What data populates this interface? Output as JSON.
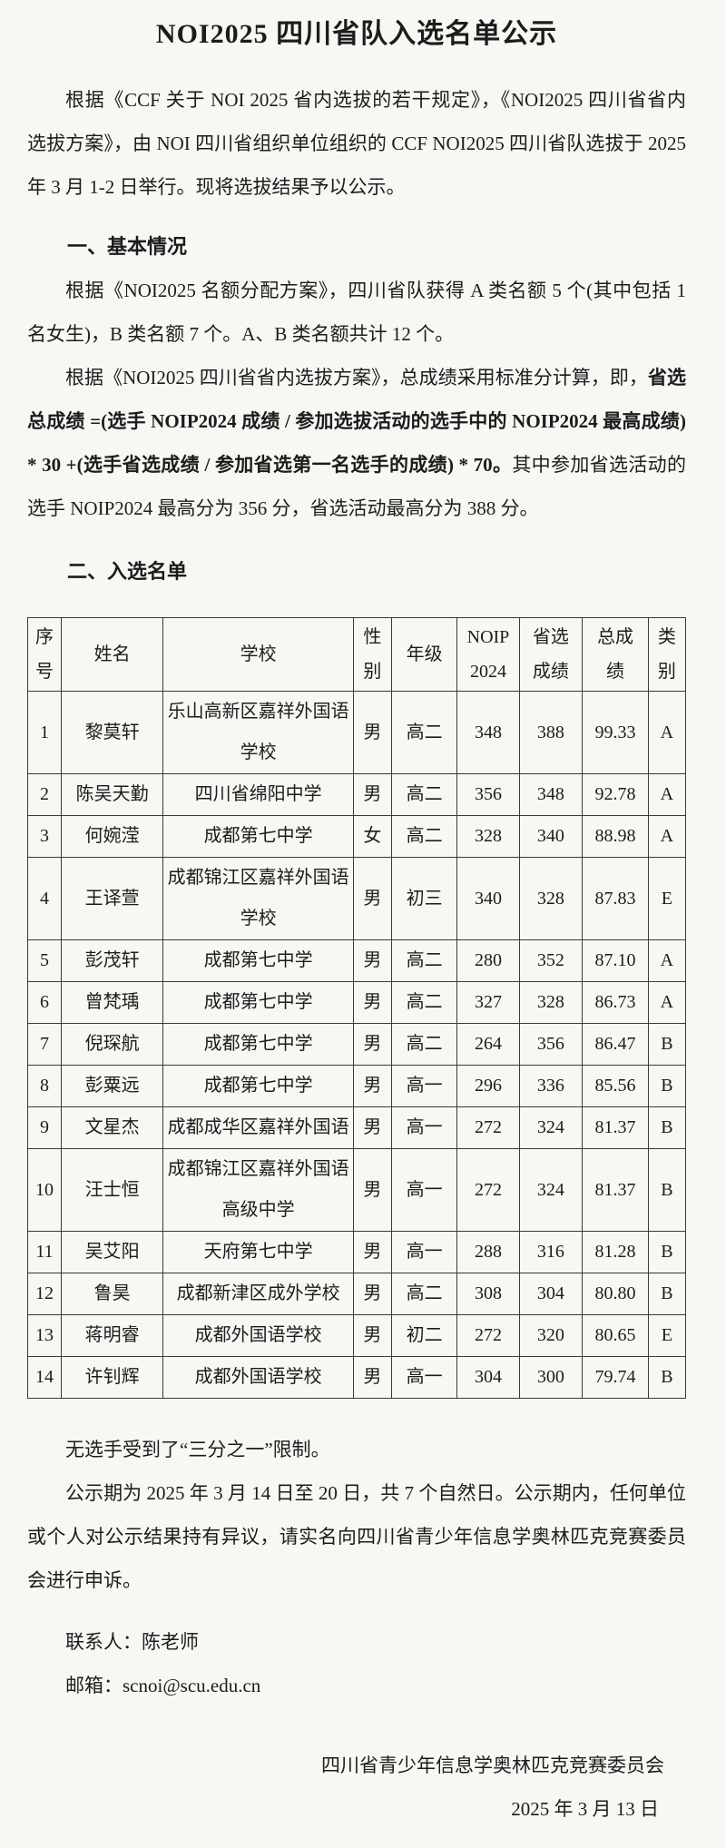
{
  "colors": {
    "page_background": "#f7f7f4",
    "text": "#1c1c1c",
    "table_border": "#3a3a3a"
  },
  "doc": {
    "title": "NOI2025 四川省队入选名单公示",
    "intro": "根据《CCF 关于 NOI 2025 省内选拔的若干规定》，《NOI2025 四川省省内选拔方案》，由 NOI 四川省组织单位组织的 CCF NOI2025 四川省队选拔于 2025 年 3 月 1-2 日举行。现将选拔结果予以公示。",
    "section1": {
      "heading": "一、基本情况",
      "quota": "根据《NOI2025 名额分配方案》，四川省队获得 A 类名额 5 个(其中包括 1 名女生)，B 类名额 7 个。A、B 类名额共计 12 个。",
      "formula_lead": "根据《NOI2025 四川省省内选拔方案》，总成绩采用标准分计算，即，",
      "formula_bold": "省选总成绩 =(选手 NOIP2024 成绩 / 参加选拔活动的选手中的 NOIP2024 最高成绩) * 30 +(选手省选成绩 / 参加省选第一名选手的成绩) * 70。",
      "formula_tail": "其中参加省选活动的选手 NOIP2024 最高分为 356 分，省选活动最高分为 388 分。"
    },
    "section2": {
      "heading": "二、入选名单",
      "table": {
        "headers": [
          "序\n号",
          "姓名",
          "学校",
          "性\n别",
          "年级",
          "NOIP\n2024",
          "省选\n成绩",
          "总成\n绩",
          "类\n别"
        ],
        "rows": [
          [
            "1",
            "黎莫轩",
            "乐山高新区嘉祥外国语学校",
            "男",
            "高二",
            "348",
            "388",
            "99.33",
            "A"
          ],
          [
            "2",
            "陈吴天勤",
            "四川省绵阳中学",
            "男",
            "高二",
            "356",
            "348",
            "92.78",
            "A"
          ],
          [
            "3",
            "何婉滢",
            "成都第七中学",
            "女",
            "高二",
            "328",
            "340",
            "88.98",
            "A"
          ],
          [
            "4",
            "王译萱",
            "成都锦江区嘉祥外国语学校",
            "男",
            "初三",
            "340",
            "328",
            "87.83",
            "E"
          ],
          [
            "5",
            "彭茂轩",
            "成都第七中学",
            "男",
            "高二",
            "280",
            "352",
            "87.10",
            "A"
          ],
          [
            "6",
            "曾梵瑀",
            "成都第七中学",
            "男",
            "高二",
            "327",
            "328",
            "86.73",
            "A"
          ],
          [
            "7",
            "倪琛航",
            "成都第七中学",
            "男",
            "高二",
            "264",
            "356",
            "86.47",
            "B"
          ],
          [
            "8",
            "彭粟远",
            "成都第七中学",
            "男",
            "高一",
            "296",
            "336",
            "85.56",
            "B"
          ],
          [
            "9",
            "文星杰",
            "成都成华区嘉祥外国语",
            "男",
            "高一",
            "272",
            "324",
            "81.37",
            "B"
          ],
          [
            "10",
            "汪士恒",
            "成都锦江区嘉祥外国语高级中学",
            "男",
            "高一",
            "272",
            "324",
            "81.37",
            "B"
          ],
          [
            "11",
            "吴艾阳",
            "天府第七中学",
            "男",
            "高一",
            "288",
            "316",
            "81.28",
            "B"
          ],
          [
            "12",
            "鲁昊",
            "成都新津区成外学校",
            "男",
            "高二",
            "308",
            "304",
            "80.80",
            "B"
          ],
          [
            "13",
            "蒋明睿",
            "成都外国语学校",
            "男",
            "初二",
            "272",
            "320",
            "80.65",
            "E"
          ],
          [
            "14",
            "许钊辉",
            "成都外国语学校",
            "男",
            "高一",
            "304",
            "300",
            "79.74",
            "B"
          ]
        ]
      }
    },
    "notes": {
      "limit": "无选手受到了“三分之一”限制。",
      "publicity": "公示期为 2025 年 3 月 14 日至 20 日，共 7 个自然日。公示期内，任何单位或个人对公示结果持有异议，请实名向四川省青少年信息学奥林匹克竞赛委员会进行申诉。"
    },
    "contact": {
      "person": "联系人：陈老师",
      "email": "邮箱：scnoi@scu.edu.cn"
    },
    "signature": {
      "org": "四川省青少年信息学奥林匹克竞赛委员会",
      "date": "2025 年 3 月 13 日"
    }
  }
}
